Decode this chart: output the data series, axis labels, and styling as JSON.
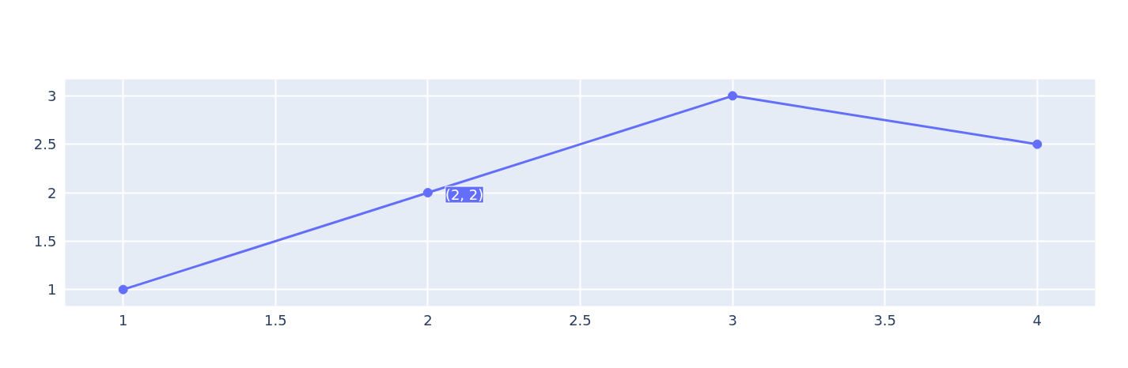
{
  "chart_data": {
    "type": "line",
    "x": [
      1,
      2,
      3,
      4
    ],
    "series": [
      {
        "color": "#636efa",
        "values": [
          1,
          2,
          3,
          2.5
        ]
      }
    ],
    "xlim": [
      0.81,
      4.19
    ],
    "ylim": [
      0.83,
      3.17
    ],
    "xticks": [
      1,
      1.5,
      2,
      2.5,
      3,
      3.5,
      4
    ],
    "yticks": [
      1,
      1.5,
      2,
      2.5,
      3
    ],
    "grid": true,
    "marker": "circle",
    "line_style": "solid",
    "annotations": [
      {
        "text": "(2, 2)",
        "x": 2,
        "y": 2
      }
    ]
  }
}
